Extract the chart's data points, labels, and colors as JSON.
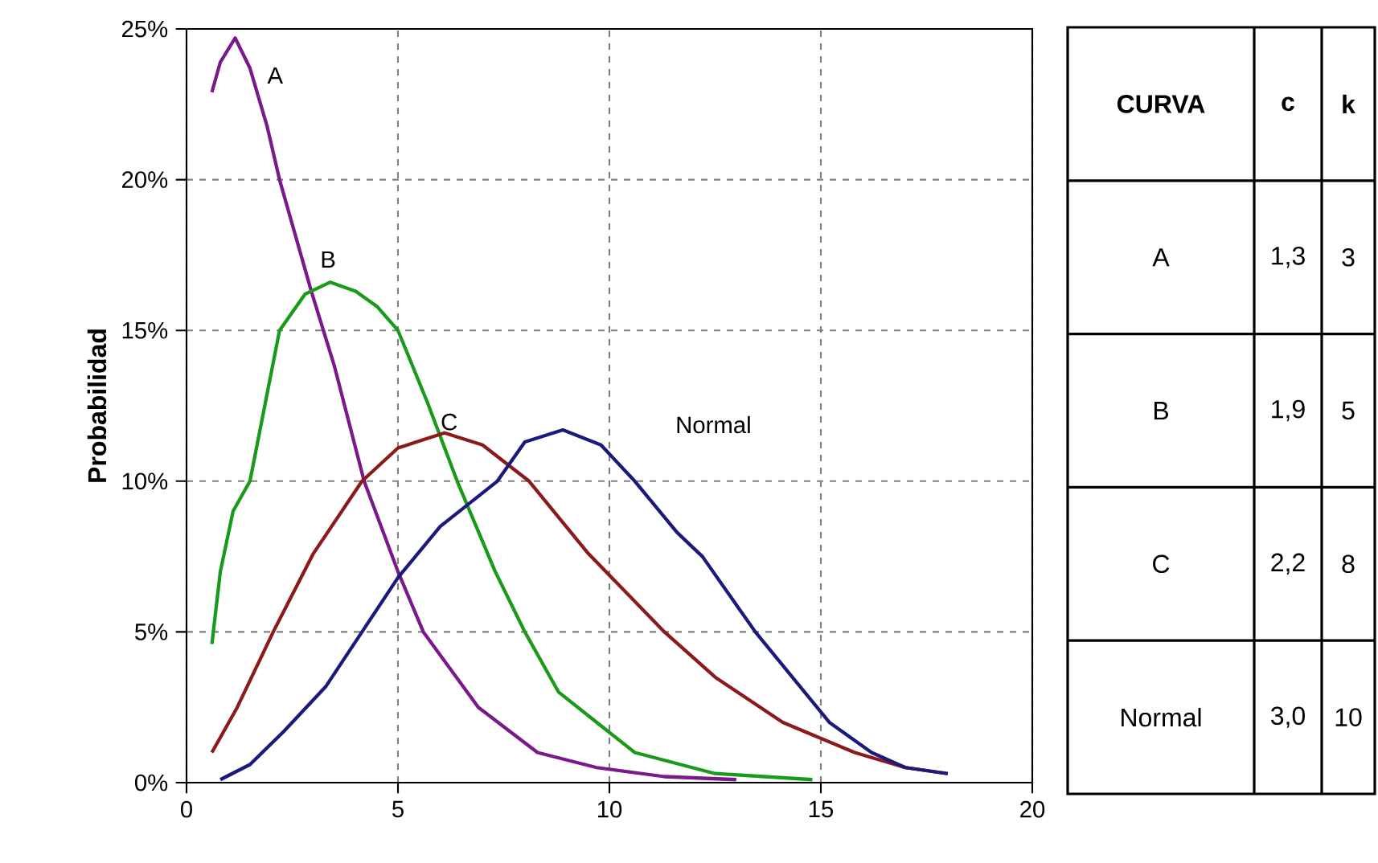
{
  "chart_data": [
    {
      "type": "line",
      "ylabel": "Probabilidad",
      "xlim": [
        0,
        20
      ],
      "ylim": [
        0,
        25
      ],
      "xticks": [
        0,
        5,
        10,
        15,
        20
      ],
      "yticks": [
        {
          "value": 0,
          "label": "0%"
        },
        {
          "value": 5,
          "label": "5%"
        },
        {
          "value": 10,
          "label": "10%"
        },
        {
          "value": 15,
          "label": "15%"
        },
        {
          "value": 20,
          "label": "20%"
        },
        {
          "value": 25,
          "label": "25%"
        }
      ],
      "grid": true,
      "marker": "none",
      "line_style": "solid",
      "series": [
        {
          "name": "A",
          "color": "#7a1a8a",
          "x": [
            0.6,
            0.8,
            1.15,
            1.5,
            1.9,
            2.2,
            2.95,
            3.5,
            4.2,
            5.0,
            5.6,
            6.9,
            8.3,
            9.7,
            11.3,
            13
          ],
          "values": [
            22.9,
            23.9,
            24.7,
            23.7,
            21.8,
            20,
            16.3,
            13.8,
            10,
            7,
            5,
            2.5,
            1,
            0.5,
            0.2,
            0.1
          ]
        },
        {
          "name": "B",
          "color": "#1a9a1a",
          "x": [
            0.6,
            0.8,
            1.1,
            1.5,
            2.2,
            2.8,
            3.4,
            4.0,
            4.5,
            5.0,
            5.7,
            6.4,
            7.3,
            8.0,
            8.8,
            9.7,
            10.6,
            12.5,
            14.8
          ],
          "values": [
            4.6,
            7,
            9,
            10,
            15,
            16.2,
            16.6,
            16.3,
            15.8,
            15,
            12.6,
            10,
            7,
            5,
            3,
            2,
            1,
            0.3,
            0.1
          ]
        },
        {
          "name": "C",
          "color": "#8b1a1a",
          "x": [
            0.6,
            1.2,
            2.05,
            3.0,
            4.15,
            5.0,
            6.1,
            7.0,
            8.1,
            9.5,
            11.3,
            12.5,
            14.1,
            15.8,
            17,
            18
          ],
          "values": [
            1,
            2.5,
            5,
            7.6,
            10,
            11.1,
            11.6,
            11.2,
            10,
            7.6,
            5,
            3.5,
            2,
            1,
            0.5,
            0.3
          ]
        },
        {
          "name": "Normal",
          "color": "#1a1a7a",
          "x": [
            0.8,
            1.5,
            2.3,
            3.3,
            4.15,
            5.0,
            6.0,
            7.35,
            8.0,
            8.9,
            9.8,
            10.6,
            11.6,
            12.2,
            13.45,
            15.2,
            16.2,
            17,
            18
          ],
          "values": [
            0.1,
            0.6,
            1.7,
            3.2,
            5,
            6.8,
            8.5,
            10,
            11.3,
            11.7,
            11.2,
            10,
            8.3,
            7.5,
            5,
            2,
            1,
            0.5,
            0.3
          ]
        }
      ]
    },
    {
      "type": "other",
      "annotations": [
        "CURVA",
        "c",
        "k",
        "A",
        "1,3",
        "3",
        "B",
        "1,9",
        "5",
        "C",
        "2,2",
        "8",
        "Normal",
        "3,0",
        "10"
      ]
    }
  ]
}
